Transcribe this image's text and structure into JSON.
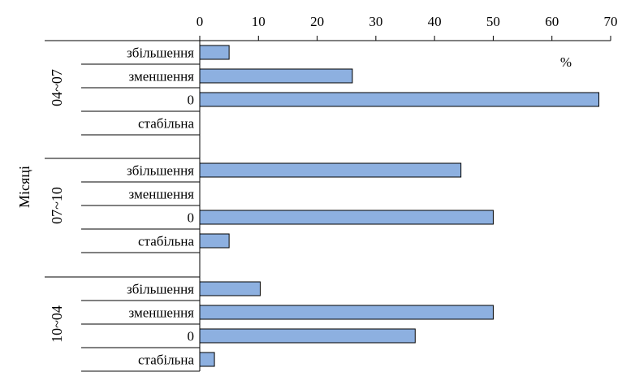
{
  "chart_data": {
    "type": "bar",
    "orientation": "horizontal",
    "ylabel": "Місяці",
    "unit": "%",
    "xlim": [
      0,
      70
    ],
    "x_ticks": [
      0,
      10,
      20,
      30,
      40,
      50,
      60,
      70
    ],
    "x_axis_position": "top",
    "grid": false,
    "bar_color": "#8DB0E0",
    "groups": [
      {
        "name": "04~07",
        "categories": [
          "збільшення",
          "зменшення",
          "0",
          "стабільна"
        ],
        "values": [
          5,
          26,
          68,
          0
        ]
      },
      {
        "name": "07~10",
        "categories": [
          "збільшення",
          "зменшення",
          "0",
          "стабільна"
        ],
        "values": [
          44.5,
          0,
          50,
          5
        ]
      },
      {
        "name": "10~04",
        "categories": [
          "збільшення",
          "зменшення",
          "0",
          "стабільна"
        ],
        "values": [
          10.3,
          50,
          36.7,
          2.5
        ]
      }
    ]
  }
}
